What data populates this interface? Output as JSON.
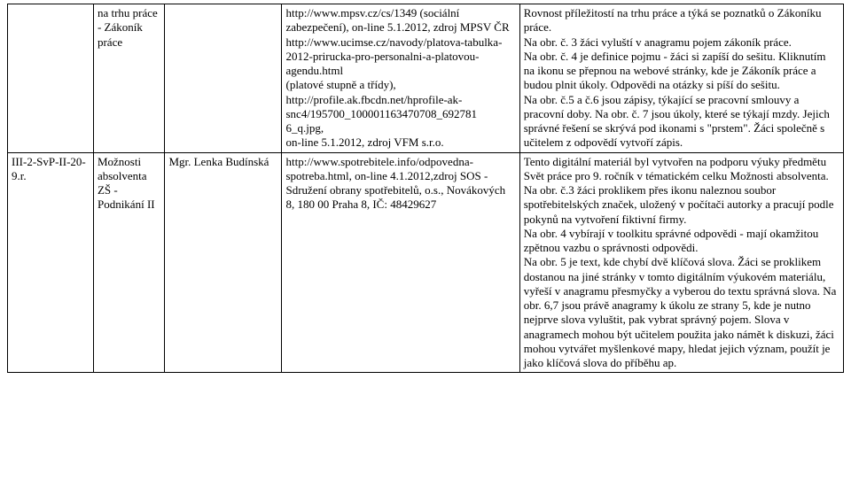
{
  "table": {
    "rows": [
      {
        "c1": "",
        "c2": "na trhu práce - Zákoník práce",
        "c3": "",
        "c4": "http://www.mpsv.cz/cs/1349 (sociální zabezpečení), on-line 5.1.2012, zdroj MPSV ČR\nhttp://www.ucimse.cz/navody/platova-tabulka-2012-prirucka-pro-personalni-a-platovou-agendu.html\n(platové stupně a třídy),\nhttp://profile.ak.fbcdn.net/hprofile-ak-snc4/195700_100001163470708_692781\n6_q.jpg,\non-line 5.1.2012, zdroj VFM s.r.o.",
        "c5": "Rovnost příležitostí na trhu práce a týká se poznatků o Zákoníku práce.\nNa obr. č. 3 žáci vyluští v anagramu pojem zákoník práce.\nNa obr. č. 4 je definice pojmu - žáci si zapíší do sešitu. Kliknutím na ikonu se přepnou na webové stránky, kde je Zákoník práce a budou plnit úkoly. Odpovědi na otázky si píší do sešitu.\nNa obr. č.5 a č.6 jsou zápisy, týkající se pracovní smlouvy a pracovní doby. Na obr. č. 7 jsou úkoly, které se týkají mzdy. Jejich správné řešení se skrývá pod ikonami s \"prstem\". Žáci společně s učitelem z odpovědí vytvoří zápis."
      },
      {
        "c1": "III-2-SvP-II-20-9.r.",
        "c2": "Možnosti absolventa ZŠ - Podnikání II",
        "c3": "Mgr. Lenka Budínská",
        "c4": "http://www.spotrebitele.info/odpovedna-spotreba.html, on-line 4.1.2012,zdroj SOS - Sdružení obrany spotřebitelů, o.s., Novákových 8, 180 00 Praha 8, IČ: 48429627",
        "c5": "Tento digitální materiál byl vytvořen na podporu výuky předmětu Svět práce pro 9. ročník v tématickém celku Možnosti absolventa.\nNa obr. č.3 žáci proklikem přes ikonu naleznou soubor spotřebitelských značek, uložený v počítači autorky a pracují podle pokynů na vytvoření fiktivní firmy.\nNa obr. 4 vybírají v toolkitu správné odpovědi - mají okamžitou zpětnou vazbu o správnosti odpovědi.\nNa obr. 5 je text, kde chybí dvě klíčová slova. Žáci se proklikem dostanou na jiné stránky v tomto digitálním výukovém materiálu, vyřeší v anagramu přesmyčky a vyberou do textu správná slova. Na obr. 6,7 jsou právě anagramy k úkolu ze strany 5, kde je nutno nejprve slova vyluštit, pak vybrat správný pojem. Slova v anagramech mohou být učitelem použita jako námět k diskuzi, žáci mohou vytvářet myšlenkové mapy, hledat jejich význam, použít je jako klíčová slova do příběhu ap."
      }
    ]
  }
}
